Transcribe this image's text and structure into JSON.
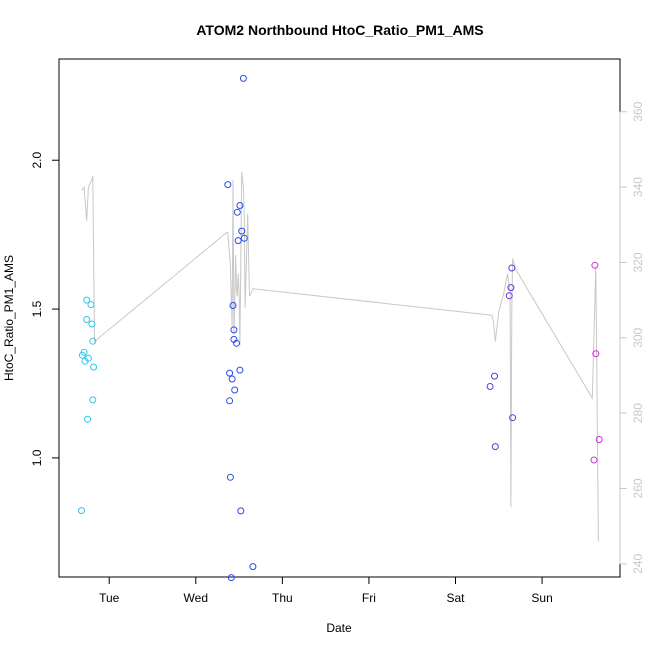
{
  "chart_data": {
    "type": "scatter",
    "title": "ATOM2 Northbound HtoC_Ratio_PM1_AMS",
    "xlabel": "Date",
    "ylabel": "HtoC_Ratio_PM1_AMS",
    "xlim": [
      -0.58,
      5.9
    ],
    "ylim": [
      0.6,
      2.34
    ],
    "y2lim": [
      236.5,
      374
    ],
    "x_unit": "days (0 = Tue 00:00)",
    "x_ticks": [
      {
        "value": 0,
        "label": "Tue"
      },
      {
        "value": 1,
        "label": "Wed"
      },
      {
        "value": 2,
        "label": "Thu"
      },
      {
        "value": 3,
        "label": "Fri"
      },
      {
        "value": 4,
        "label": "Sat"
      },
      {
        "value": 5,
        "label": "Sun"
      }
    ],
    "y_ticks": [
      {
        "value": 1.0,
        "label": "1.0"
      },
      {
        "value": 1.5,
        "label": "1.5"
      },
      {
        "value": 2.0,
        "label": "2.0"
      }
    ],
    "y2_ticks": [
      {
        "value": 240,
        "label": "240"
      },
      {
        "value": 260,
        "label": "260"
      },
      {
        "value": 280,
        "label": "280"
      },
      {
        "value": 300,
        "label": "300"
      },
      {
        "value": 320,
        "label": "320"
      },
      {
        "value": 340,
        "label": "340"
      },
      {
        "value": 360,
        "label": "360"
      }
    ],
    "grid": false,
    "legend": "none",
    "colors": {
      "cyan": "#33c5ee",
      "blue": "#2a4de6",
      "purple": "#6a35e0",
      "magenta": "#cc33d9",
      "secondary_line": "#c8c8c8"
    },
    "points": [
      {
        "x": -0.32,
        "y": 0.823,
        "c": "cyan"
      },
      {
        "x": -0.31,
        "y": 1.345,
        "c": "cyan"
      },
      {
        "x": -0.29,
        "y": 1.355,
        "c": "cyan"
      },
      {
        "x": -0.28,
        "y": 1.325,
        "c": "cyan"
      },
      {
        "x": -0.26,
        "y": 1.53,
        "c": "cyan"
      },
      {
        "x": -0.26,
        "y": 1.465,
        "c": "cyan"
      },
      {
        "x": -0.25,
        "y": 1.13,
        "c": "cyan"
      },
      {
        "x": -0.24,
        "y": 1.335,
        "c": "cyan"
      },
      {
        "x": -0.21,
        "y": 1.515,
        "c": "cyan"
      },
      {
        "x": -0.2,
        "y": 1.45,
        "c": "cyan"
      },
      {
        "x": -0.19,
        "y": 1.392,
        "c": "cyan"
      },
      {
        "x": -0.19,
        "y": 1.195,
        "c": "cyan"
      },
      {
        "x": -0.18,
        "y": 1.305,
        "c": "cyan"
      },
      {
        "x": 1.37,
        "y": 1.918,
        "c": "blue"
      },
      {
        "x": 1.39,
        "y": 1.285,
        "c": "blue"
      },
      {
        "x": 1.39,
        "y": 1.192,
        "c": "blue"
      },
      {
        "x": 1.4,
        "y": 0.935,
        "c": "blue"
      },
      {
        "x": 1.41,
        "y": 0.598,
        "c": "blue"
      },
      {
        "x": 1.42,
        "y": 1.265,
        "c": "blue"
      },
      {
        "x": 1.43,
        "y": 1.512,
        "c": "blue"
      },
      {
        "x": 1.44,
        "y": 1.43,
        "c": "blue"
      },
      {
        "x": 1.44,
        "y": 1.398,
        "c": "blue"
      },
      {
        "x": 1.45,
        "y": 1.228,
        "c": "blue"
      },
      {
        "x": 1.47,
        "y": 1.385,
        "c": "blue"
      },
      {
        "x": 1.48,
        "y": 1.825,
        "c": "blue"
      },
      {
        "x": 1.49,
        "y": 1.73,
        "c": "blue"
      },
      {
        "x": 1.51,
        "y": 1.848,
        "c": "blue"
      },
      {
        "x": 1.51,
        "y": 1.295,
        "c": "blue"
      },
      {
        "x": 1.52,
        "y": 0.822,
        "c": "blue"
      },
      {
        "x": 1.53,
        "y": 1.762,
        "c": "blue"
      },
      {
        "x": 1.55,
        "y": 2.275,
        "c": "blue"
      },
      {
        "x": 1.56,
        "y": 1.738,
        "c": "blue"
      },
      {
        "x": 1.66,
        "y": 0.635,
        "c": "blue"
      },
      {
        "x": 4.4,
        "y": 1.24,
        "c": "purple"
      },
      {
        "x": 4.45,
        "y": 1.275,
        "c": "purple"
      },
      {
        "x": 4.46,
        "y": 1.038,
        "c": "purple"
      },
      {
        "x": 4.62,
        "y": 1.545,
        "c": "purple"
      },
      {
        "x": 4.64,
        "y": 1.572,
        "c": "purple"
      },
      {
        "x": 4.65,
        "y": 1.638,
        "c": "purple"
      },
      {
        "x": 4.66,
        "y": 1.135,
        "c": "purple"
      },
      {
        "x": 5.6,
        "y": 0.993,
        "c": "magenta"
      },
      {
        "x": 5.61,
        "y": 1.647,
        "c": "magenta"
      },
      {
        "x": 5.62,
        "y": 1.35,
        "c": "magenta"
      },
      {
        "x": 5.66,
        "y": 1.062,
        "c": "magenta"
      }
    ],
    "secondary_series": {
      "axis": "right",
      "x": [
        -0.32,
        -0.29,
        -0.26,
        -0.24,
        -0.2,
        -0.19,
        -0.17,
        1.36,
        1.37,
        1.4,
        1.42,
        1.43,
        1.44,
        1.45,
        1.46,
        1.47,
        1.48,
        1.49,
        1.5,
        1.51,
        1.52,
        1.53,
        1.55,
        1.56,
        1.57,
        1.6,
        1.62,
        1.64,
        1.66,
        4.42,
        4.44,
        4.46,
        4.5,
        4.55,
        4.6,
        4.63,
        4.64,
        4.65,
        4.66,
        4.7,
        5.58,
        5.62,
        5.65
      ],
      "y": [
        339,
        340,
        331,
        340,
        342,
        343,
        299,
        328,
        328,
        319,
        303,
        342,
        301,
        308,
        322,
        313,
        311,
        317,
        312,
        298,
        320,
        344,
        340,
        332,
        308,
        333,
        311,
        312,
        313,
        306,
        304,
        299,
        307,
        311,
        317,
        312,
        255,
        307,
        321,
        318,
        284,
        319,
        246
      ]
    }
  }
}
